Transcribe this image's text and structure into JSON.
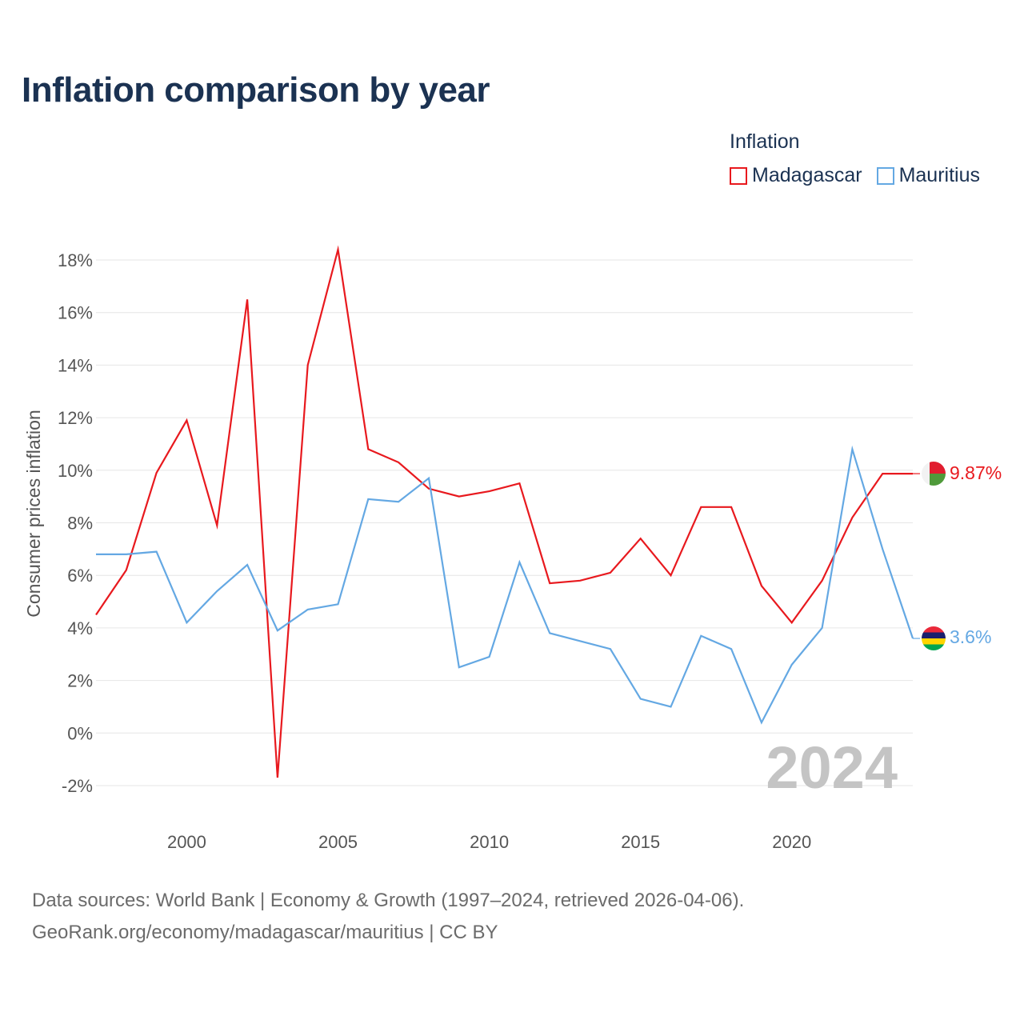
{
  "title": "Inflation comparison by year",
  "legend": {
    "title": "Inflation",
    "items": [
      {
        "name": "Madagascar",
        "color": "#e8191e"
      },
      {
        "name": "Mauritius",
        "color": "#64a8e3"
      }
    ]
  },
  "sources": {
    "line1": "Data sources: World Bank | Economy & Growth (1997–2024, retrieved 2026-04-06).",
    "line2": "GeoRank.org/economy/madagascar/mauritius | CC BY"
  },
  "chart_data": {
    "type": "line",
    "title": "Inflation comparison by year",
    "xlabel": "",
    "ylabel": "Consumer prices inflation",
    "xlim": [
      1997,
      2024
    ],
    "ylim": [
      -2,
      18
    ],
    "x_ticks": [
      2000,
      2005,
      2010,
      2015,
      2020
    ],
    "y_ticks": [
      -2,
      0,
      2,
      4,
      6,
      8,
      10,
      12,
      14,
      16,
      18
    ],
    "y_tick_labels": [
      "-2%",
      "0%",
      "2%",
      "4%",
      "6%",
      "8%",
      "10%",
      "12%",
      "14%",
      "16%",
      "18%"
    ],
    "x": [
      1997,
      1998,
      1999,
      2000,
      2001,
      2002,
      2003,
      2004,
      2005,
      2006,
      2007,
      2008,
      2009,
      2010,
      2011,
      2012,
      2013,
      2014,
      2015,
      2016,
      2017,
      2018,
      2019,
      2020,
      2021,
      2022,
      2023,
      2024
    ],
    "series": [
      {
        "name": "Madagascar",
        "color": "#e8191e",
        "values": [
          4.5,
          6.2,
          9.9,
          11.9,
          7.9,
          16.5,
          -1.7,
          14.0,
          18.4,
          10.8,
          10.3,
          9.3,
          9.0,
          9.2,
          9.5,
          5.7,
          5.8,
          6.1,
          7.4,
          6.0,
          8.6,
          8.6,
          5.6,
          4.2,
          5.8,
          8.2,
          9.87,
          9.87
        ],
        "end_label": "9.87%",
        "end_flag": "madagascar-flag"
      },
      {
        "name": "Mauritius",
        "color": "#64a8e3",
        "values": [
          6.8,
          6.8,
          6.9,
          4.2,
          5.4,
          6.4,
          3.9,
          4.7,
          4.9,
          8.9,
          8.8,
          9.7,
          2.5,
          2.9,
          6.5,
          3.8,
          3.5,
          3.2,
          1.3,
          1.0,
          3.7,
          3.2,
          0.4,
          2.6,
          4.0,
          10.8,
          7.0,
          3.6
        ],
        "end_label": "3.6%",
        "end_flag": "mauritius-flag"
      }
    ],
    "annotation": "2024",
    "grid": true,
    "legend_position": "top-right"
  }
}
